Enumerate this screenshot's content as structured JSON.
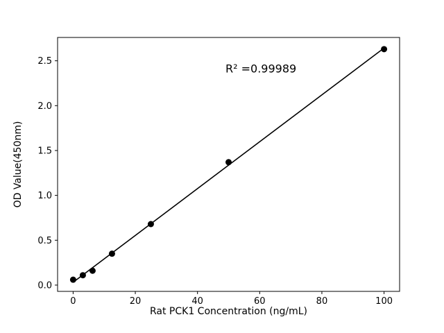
{
  "chart_data": {
    "type": "scatter",
    "title": "",
    "xlabel": "Rat PCK1 Concentration (ng/mL)",
    "ylabel": "OD Value(450nm)",
    "x": [
      0,
      3.125,
      6.25,
      12.5,
      25,
      50,
      100
    ],
    "y": [
      0.06,
      0.11,
      0.16,
      0.35,
      0.68,
      1.37,
      2.63
    ],
    "fit_line": {
      "slope": 0.02611,
      "intercept": 0.0313,
      "x_start": 0,
      "x_end": 100
    },
    "annotation": {
      "text": "R² =0.99989",
      "x": 49,
      "y": 2.37
    },
    "xlim": [
      -5,
      105
    ],
    "ylim": [
      -0.07,
      2.76
    ],
    "xticks": [
      0,
      20,
      40,
      60,
      80,
      100
    ],
    "yticks": [
      0.0,
      0.5,
      1.0,
      1.5,
      2.0,
      2.5
    ],
    "grid": false,
    "legend": null,
    "marker_color": "#000000",
    "line_color": "#000000",
    "background_color": "#ffffff"
  }
}
